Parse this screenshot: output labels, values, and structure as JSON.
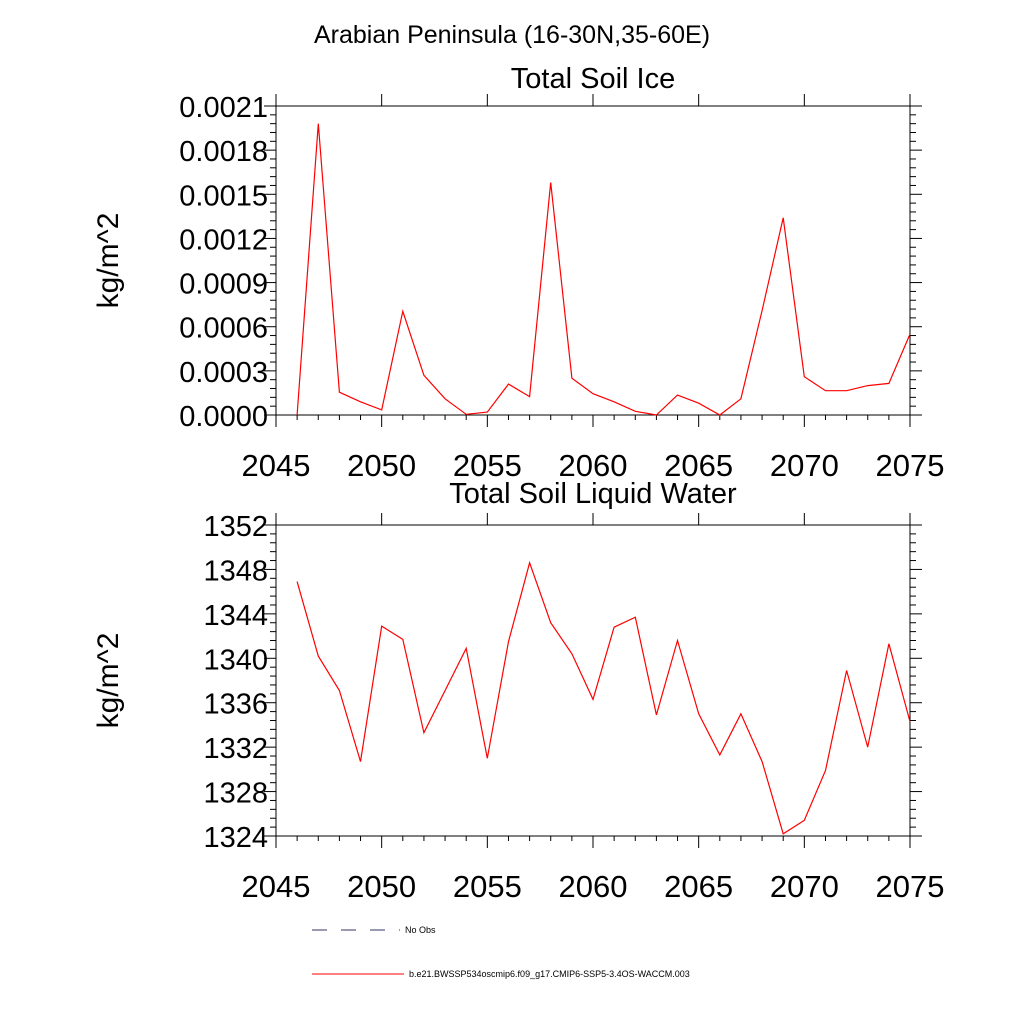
{
  "page_title": "Arabian Peninsula (16-30N,35-60E)",
  "chart_data": [
    {
      "type": "line",
      "title": "Total Soil Ice",
      "ylabel": "kg/m^2",
      "xlabel": "",
      "xlim": [
        2045,
        2075
      ],
      "ylim": [
        0,
        0.0021
      ],
      "xticks": [
        "2045",
        "2050",
        "2055",
        "2060",
        "2065",
        "2070",
        "2075"
      ],
      "yticks": [
        "0.0000",
        "0.0003",
        "0.0006",
        "0.0009",
        "0.0012",
        "0.0015",
        "0.0018",
        "0.0021"
      ],
      "x": [
        2046,
        2047,
        2048,
        2049,
        2050,
        2051,
        2052,
        2053,
        2054,
        2055,
        2056,
        2057,
        2058,
        2059,
        2060,
        2061,
        2062,
        2063,
        2064,
        2065,
        2066,
        2067,
        2068,
        2069,
        2070,
        2071,
        2072,
        2073,
        2074,
        2075
      ],
      "series": [
        {
          "name": "b.e21.BWSSP534oscmip6.f09_g17.CMIP6-SSP5-3.4OS-WACCM.003",
          "color": "#ff0000",
          "values": [
            0.0,
            0.00198,
            0.000155,
            9e-05,
            3.5e-05,
            0.000705,
            0.00027,
            0.00011,
            5e-06,
            2e-05,
            0.00021,
            0.000125,
            0.00158,
            0.00025,
            0.000145,
            9e-05,
            2.5e-05,
            0.0,
            0.000135,
            8e-05,
            0.0,
            0.00011,
            0.00071,
            0.00134,
            0.00026,
            0.000165,
            0.000165,
            0.0002,
            0.000215,
            0.00055
          ]
        }
      ]
    },
    {
      "type": "line",
      "title": "Total Soil Liquid Water",
      "ylabel": "kg/m^2",
      "xlabel": "",
      "xlim": [
        2045,
        2075
      ],
      "ylim": [
        1324,
        1352
      ],
      "xticks": [
        "2045",
        "2050",
        "2055",
        "2060",
        "2065",
        "2070",
        "2075"
      ],
      "yticks": [
        "1324",
        "1328",
        "1332",
        "1336",
        "1340",
        "1344",
        "1348",
        "1352"
      ],
      "x": [
        2046,
        2047,
        2048,
        2049,
        2050,
        2051,
        2052,
        2053,
        2054,
        2055,
        2056,
        2057,
        2058,
        2059,
        2060,
        2061,
        2062,
        2063,
        2064,
        2065,
        2066,
        2067,
        2068,
        2069,
        2070,
        2071,
        2072,
        2073,
        2074,
        2075
      ],
      "series": [
        {
          "name": "b.e21.BWSSP534oscmip6.f09_g17.CMIP6-SSP5-3.4OS-WACCM.003",
          "color": "#ff0000",
          "values": [
            1346.9,
            1340.2,
            1337.1,
            1330.7,
            1342.9,
            1341.7,
            1333.3,
            1337.1,
            1340.9,
            1331.0,
            1341.5,
            1348.6,
            1343.2,
            1340.4,
            1336.3,
            1342.8,
            1343.7,
            1334.9,
            1341.6,
            1335.0,
            1331.3,
            1335.0,
            1330.7,
            1324.2,
            1325.4,
            1329.9,
            1338.9,
            1332.0,
            1341.3,
            1334.3
          ]
        }
      ]
    }
  ],
  "legend": [
    {
      "label": "No Obs",
      "color": "#333366",
      "style": "dashed"
    },
    {
      "label": "b.e21.BWSSP534oscmip6.f09_g17.CMIP6-SSP5-3.4OS-WACCM.003",
      "color": "#ff0000",
      "style": "solid"
    }
  ]
}
